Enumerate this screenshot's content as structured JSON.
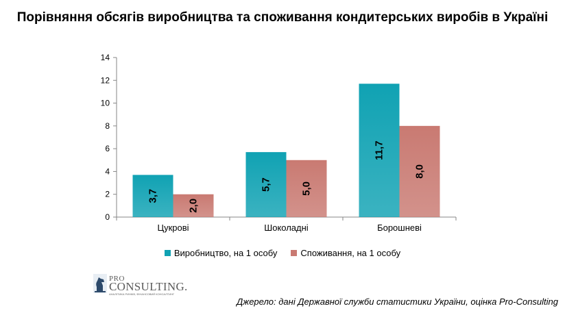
{
  "chart_data": {
    "type": "bar",
    "title": "Порівняння обсягів виробництва та споживання кондитерських виробів в Україні",
    "categories": [
      "Цукрові",
      "Шоколадні",
      "Борошневі"
    ],
    "series": [
      {
        "name": "Виробництво, на 1 особу",
        "values": [
          3.7,
          5.7,
          11.7
        ],
        "labels": [
          "3,7",
          "5,7",
          "11,7"
        ],
        "color": "#10a2b3"
      },
      {
        "name": "Споживання, на 1 особу",
        "values": [
          2.0,
          5.0,
          8.0
        ],
        "labels": [
          "2,0",
          "5,0",
          "8,0"
        ],
        "color": "#c97a72"
      }
    ],
    "ylim": [
      0,
      14
    ],
    "yticks": [
      "0",
      "2",
      "4",
      "6",
      "8",
      "10",
      "12",
      "14"
    ],
    "xlabel": "",
    "ylabel": "",
    "legend_position": "bottom",
    "grid": false
  },
  "logo": {
    "pro": "PRO",
    "name": "CONSULTING.",
    "tagline": "АНАЛІТИКА РИНКІВ, ФІНАНСОВИЙ КОНСАЛТИНГ"
  },
  "source": "Джерело: дані Державної служби статистики України, оцінка Pro-Consulting"
}
